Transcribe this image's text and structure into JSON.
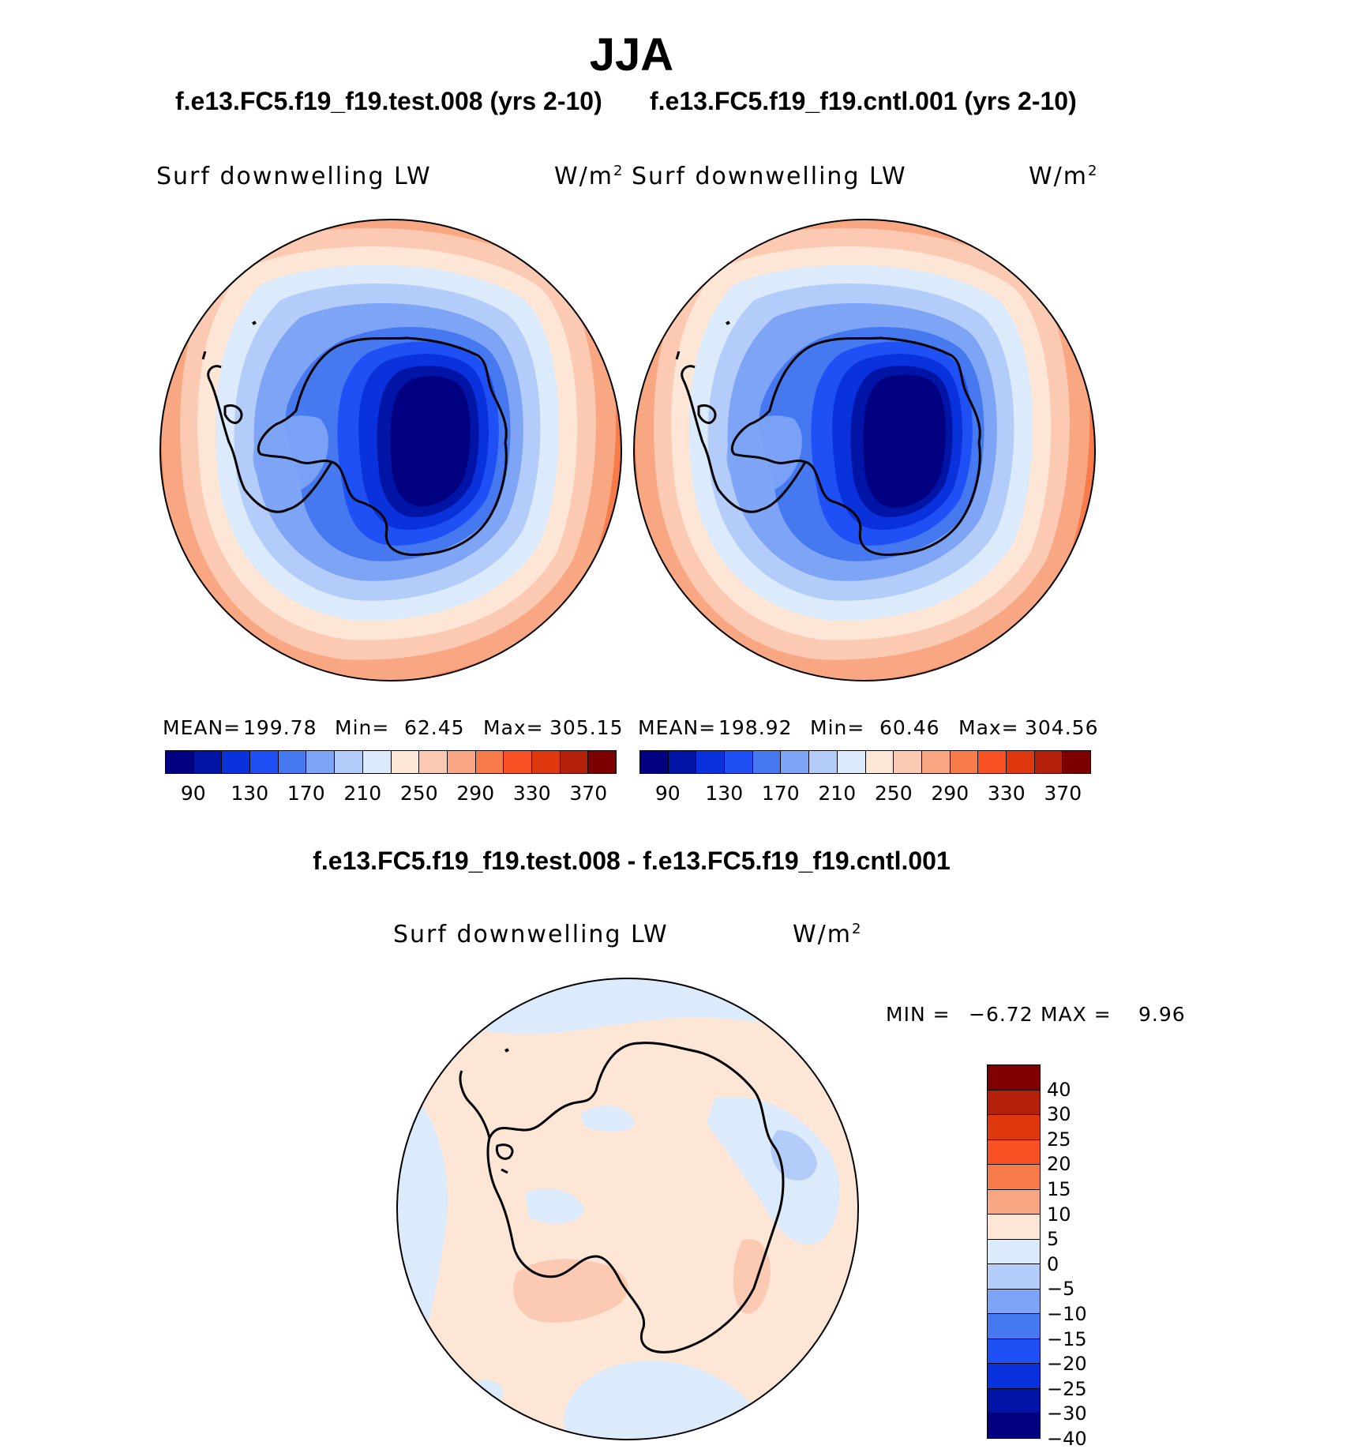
{
  "figure": {
    "season": "JJA",
    "test_case": "f.e13.FC5.f19_f19.test.008 (yrs 2-10)",
    "control_case": "f.e13.FC5.f19_f19.cntl.001 (yrs 2-10)",
    "diff_title": "f.e13.FC5.f19_f19.test.008 - f.e13.FC5.f19_f19.cntl.001"
  },
  "panels": {
    "test": {
      "variable": "Surf downwelling LW",
      "units": "W/m",
      "units_sup": "2",
      "mean_label": "MEAN=",
      "mean": "199.78",
      "min_label": "Min=",
      "min": "62.45",
      "max_label": "Max=",
      "max": "305.15"
    },
    "control": {
      "variable": "Surf downwelling LW",
      "units": "W/m",
      "units_sup": "2",
      "mean_label": "MEAN=",
      "mean": "198.92",
      "min_label": "Min=",
      "min": "60.46",
      "max_label": "Max=",
      "max": "304.56"
    },
    "difference": {
      "variable": "Surf downwelling LW",
      "units": "W/m",
      "units_sup": "2",
      "min_label": "MIN =",
      "min": "−6.72",
      "max_label": "MAX =",
      "max": "9.96"
    }
  },
  "colorbars": {
    "absolute": {
      "colors": [
        "#000080",
        "#0014a6",
        "#0a32dc",
        "#1e50f5",
        "#4678f0",
        "#7ea5f5",
        "#b4ccfa",
        "#dcebfc",
        "#fde6d6",
        "#fccab3",
        "#f9a683",
        "#f87c4a",
        "#f85022",
        "#df380f",
        "#b4200a",
        "#7d0000"
      ],
      "tick_labels": [
        "90",
        "130",
        "170",
        "210",
        "250",
        "290",
        "330",
        "370"
      ]
    },
    "difference": {
      "colors": [
        "#800000",
        "#b4200a",
        "#df380f",
        "#f85022",
        "#f87c4a",
        "#f9a683",
        "#fde6d6",
        "#dcebfc",
        "#b4ccfa",
        "#7ea5f5",
        "#4678f0",
        "#1e50f5",
        "#0a32dc",
        "#0014a6",
        "#000080"
      ],
      "tick_labels": [
        "40",
        "30",
        "25",
        "20",
        "15",
        "10",
        "5",
        "0",
        "−5",
        "−10",
        "−15",
        "−20",
        "−25",
        "−30",
        "−40"
      ]
    }
  },
  "map_colors": {
    "outline": "#000000",
    "diff_background": "#fde6d6",
    "diff_negative": "#dcebfc",
    "diff_negative_strong": "#b4ccfa",
    "diff_positive": "#fccab3"
  }
}
